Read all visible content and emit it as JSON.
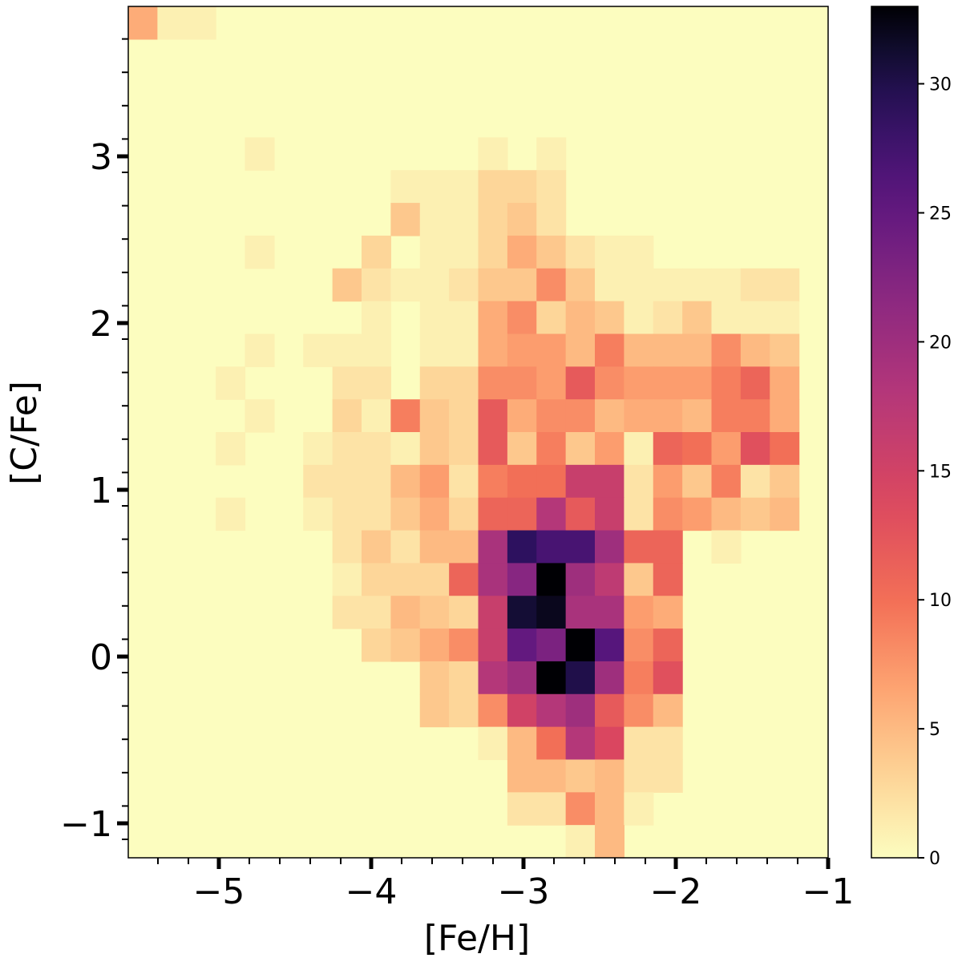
{
  "chart_data": {
    "type": "heatmap",
    "title": "",
    "xlabel": "[Fe/H]",
    "ylabel": "[C/Fe]",
    "colormap": "magma_r",
    "colors": {
      "low": "#fcfdbf",
      "high": "#000004"
    },
    "x_tick_labels": [
      "−5",
      "−4",
      "−3",
      "−2",
      "−1"
    ],
    "y_tick_labels": [
      "−1",
      "0",
      "1",
      "2",
      "3"
    ],
    "colorbar": {
      "tick_labels": [
        "0",
        "5",
        "10",
        "15",
        "20",
        "25",
        "30"
      ],
      "ticks": [
        0,
        5,
        10,
        15,
        20,
        25,
        30
      ],
      "range": [
        0,
        33
      ]
    },
    "xlim": [
      -5.65,
      -1.0
    ],
    "ylim": [
      -1.2,
      3.9
    ],
    "x_bin_edges_start": -5.65,
    "x_bin_width": 0.1818,
    "y_bin_edges_start": -1.2,
    "y_bin_width": 0.2048,
    "cells": [
      [
        0,
        24,
        6
      ],
      [
        1,
        24,
        1
      ],
      [
        2,
        24,
        1
      ],
      [
        4,
        20,
        1
      ],
      [
        12,
        20,
        1
      ],
      [
        14,
        20,
        1
      ],
      [
        9,
        19,
        1
      ],
      [
        10,
        19,
        1
      ],
      [
        11,
        19,
        1
      ],
      [
        12,
        19,
        3
      ],
      [
        13,
        19,
        3
      ],
      [
        14,
        19,
        2
      ],
      [
        9,
        18,
        4
      ],
      [
        10,
        18,
        1
      ],
      [
        11,
        18,
        1
      ],
      [
        12,
        18,
        3
      ],
      [
        13,
        18,
        4
      ],
      [
        14,
        18,
        2
      ],
      [
        4,
        17,
        1
      ],
      [
        8,
        17,
        3
      ],
      [
        10,
        17,
        1
      ],
      [
        11,
        17,
        1
      ],
      [
        12,
        17,
        3
      ],
      [
        13,
        17,
        6
      ],
      [
        14,
        17,
        4
      ],
      [
        15,
        17,
        2
      ],
      [
        16,
        17,
        1
      ],
      [
        17,
        17,
        1
      ],
      [
        7,
        16,
        4
      ],
      [
        8,
        16,
        2
      ],
      [
        9,
        16,
        1
      ],
      [
        10,
        16,
        1
      ],
      [
        11,
        16,
        2
      ],
      [
        12,
        16,
        4
      ],
      [
        13,
        16,
        4
      ],
      [
        14,
        16,
        8
      ],
      [
        15,
        16,
        4
      ],
      [
        16,
        16,
        1
      ],
      [
        17,
        16,
        1
      ],
      [
        18,
        16,
        1
      ],
      [
        19,
        16,
        1
      ],
      [
        20,
        16,
        1
      ],
      [
        21,
        16,
        2
      ],
      [
        22,
        16,
        2
      ],
      [
        8,
        15,
        1
      ],
      [
        10,
        15,
        1
      ],
      [
        11,
        15,
        1
      ],
      [
        12,
        15,
        6
      ],
      [
        13,
        15,
        8
      ],
      [
        14,
        15,
        3
      ],
      [
        15,
        15,
        5
      ],
      [
        16,
        15,
        4
      ],
      [
        17,
        15,
        1
      ],
      [
        18,
        15,
        2
      ],
      [
        19,
        15,
        4
      ],
      [
        20,
        15,
        1
      ],
      [
        21,
        15,
        1
      ],
      [
        22,
        15,
        1
      ],
      [
        4,
        14,
        1
      ],
      [
        6,
        14,
        1
      ],
      [
        7,
        14,
        1
      ],
      [
        8,
        14,
        1
      ],
      [
        10,
        14,
        1
      ],
      [
        11,
        14,
        1
      ],
      [
        12,
        14,
        6
      ],
      [
        13,
        14,
        7
      ],
      [
        14,
        14,
        7
      ],
      [
        15,
        14,
        5
      ],
      [
        16,
        14,
        9
      ],
      [
        17,
        14,
        5
      ],
      [
        18,
        14,
        5
      ],
      [
        19,
        14,
        5
      ],
      [
        20,
        14,
        8
      ],
      [
        21,
        14,
        5
      ],
      [
        22,
        14,
        4
      ],
      [
        3,
        13,
        1
      ],
      [
        7,
        13,
        2
      ],
      [
        8,
        13,
        2
      ],
      [
        10,
        13,
        3
      ],
      [
        11,
        13,
        3
      ],
      [
        12,
        13,
        8
      ],
      [
        13,
        13,
        8
      ],
      [
        14,
        13,
        7
      ],
      [
        15,
        13,
        12
      ],
      [
        16,
        13,
        8
      ],
      [
        17,
        13,
        7
      ],
      [
        18,
        13,
        7
      ],
      [
        19,
        13,
        7
      ],
      [
        20,
        13,
        9
      ],
      [
        21,
        13,
        11
      ],
      [
        22,
        13,
        6
      ],
      [
        4,
        12,
        1
      ],
      [
        7,
        12,
        3
      ],
      [
        8,
        12,
        1
      ],
      [
        9,
        12,
        9
      ],
      [
        10,
        12,
        4
      ],
      [
        11,
        12,
        3
      ],
      [
        12,
        12,
        12
      ],
      [
        13,
        12,
        6
      ],
      [
        14,
        12,
        8
      ],
      [
        15,
        12,
        8
      ],
      [
        16,
        12,
        5
      ],
      [
        17,
        12,
        6
      ],
      [
        18,
        12,
        6
      ],
      [
        19,
        12,
        5
      ],
      [
        20,
        12,
        9
      ],
      [
        21,
        12,
        9
      ],
      [
        22,
        12,
        6
      ],
      [
        3,
        11,
        1
      ],
      [
        6,
        11,
        1
      ],
      [
        7,
        11,
        2
      ],
      [
        8,
        11,
        2
      ],
      [
        9,
        11,
        1
      ],
      [
        10,
        11,
        4
      ],
      [
        11,
        11,
        3
      ],
      [
        12,
        11,
        12
      ],
      [
        13,
        11,
        4
      ],
      [
        14,
        11,
        9
      ],
      [
        15,
        11,
        4
      ],
      [
        16,
        11,
        7
      ],
      [
        17,
        11,
        1
      ],
      [
        18,
        11,
        11
      ],
      [
        19,
        11,
        10
      ],
      [
        20,
        11,
        7
      ],
      [
        21,
        11,
        13
      ],
      [
        22,
        11,
        10
      ],
      [
        6,
        10,
        2
      ],
      [
        7,
        10,
        2
      ],
      [
        8,
        10,
        2
      ],
      [
        9,
        10,
        5
      ],
      [
        10,
        10,
        7
      ],
      [
        11,
        10,
        2
      ],
      [
        12,
        10,
        9
      ],
      [
        13,
        10,
        10
      ],
      [
        14,
        10,
        10
      ],
      [
        15,
        10,
        16
      ],
      [
        16,
        10,
        16
      ],
      [
        17,
        10,
        2
      ],
      [
        18,
        10,
        7
      ],
      [
        19,
        10,
        4
      ],
      [
        20,
        10,
        9
      ],
      [
        21,
        10,
        2
      ],
      [
        22,
        10,
        4
      ],
      [
        3,
        9,
        1
      ],
      [
        6,
        9,
        1
      ],
      [
        7,
        9,
        2
      ],
      [
        8,
        9,
        2
      ],
      [
        9,
        9,
        4
      ],
      [
        10,
        9,
        6
      ],
      [
        11,
        9,
        3
      ],
      [
        12,
        9,
        11
      ],
      [
        13,
        9,
        11
      ],
      [
        14,
        9,
        18
      ],
      [
        15,
        9,
        12
      ],
      [
        16,
        9,
        16
      ],
      [
        17,
        9,
        2
      ],
      [
        18,
        9,
        8
      ],
      [
        19,
        9,
        7
      ],
      [
        20,
        9,
        5
      ],
      [
        21,
        9,
        4
      ],
      [
        22,
        9,
        5
      ],
      [
        7,
        8,
        2
      ],
      [
        8,
        8,
        4
      ],
      [
        9,
        8,
        2
      ],
      [
        10,
        8,
        5
      ],
      [
        11,
        8,
        5
      ],
      [
        12,
        8,
        19
      ],
      [
        13,
        8,
        29
      ],
      [
        14,
        8,
        27
      ],
      [
        15,
        8,
        27
      ],
      [
        16,
        8,
        20
      ],
      [
        17,
        8,
        11
      ],
      [
        18,
        8,
        11
      ],
      [
        20,
        8,
        1
      ],
      [
        7,
        7,
        1
      ],
      [
        8,
        7,
        3
      ],
      [
        9,
        7,
        3
      ],
      [
        10,
        7,
        3
      ],
      [
        11,
        7,
        11
      ],
      [
        12,
        7,
        19
      ],
      [
        13,
        7,
        22
      ],
      [
        14,
        7,
        33
      ],
      [
        15,
        7,
        20
      ],
      [
        16,
        7,
        17
      ],
      [
        17,
        7,
        4
      ],
      [
        18,
        7,
        11
      ],
      [
        7,
        6,
        2
      ],
      [
        8,
        6,
        2
      ],
      [
        9,
        6,
        5
      ],
      [
        10,
        6,
        4
      ],
      [
        11,
        6,
        3
      ],
      [
        12,
        6,
        16
      ],
      [
        13,
        6,
        31
      ],
      [
        14,
        6,
        32
      ],
      [
        15,
        6,
        19
      ],
      [
        16,
        6,
        19
      ],
      [
        17,
        6,
        7
      ],
      [
        18,
        6,
        6
      ],
      [
        8,
        5,
        3
      ],
      [
        9,
        5,
        4
      ],
      [
        10,
        5,
        6
      ],
      [
        11,
        5,
        8
      ],
      [
        12,
        5,
        16
      ],
      [
        13,
        5,
        25
      ],
      [
        14,
        5,
        23
      ],
      [
        15,
        5,
        33
      ],
      [
        16,
        5,
        26
      ],
      [
        17,
        5,
        8
      ],
      [
        18,
        5,
        11
      ],
      [
        10,
        4,
        4
      ],
      [
        11,
        4,
        3
      ],
      [
        12,
        4,
        18
      ],
      [
        13,
        4,
        20
      ],
      [
        14,
        4,
        33
      ],
      [
        15,
        4,
        30
      ],
      [
        16,
        4,
        20
      ],
      [
        17,
        4,
        9
      ],
      [
        18,
        4,
        13
      ],
      [
        10,
        3,
        4
      ],
      [
        11,
        3,
        3
      ],
      [
        12,
        3,
        8
      ],
      [
        13,
        3,
        15
      ],
      [
        14,
        3,
        18
      ],
      [
        15,
        3,
        20
      ],
      [
        16,
        3,
        12
      ],
      [
        17,
        3,
        8
      ],
      [
        18,
        3,
        5
      ],
      [
        12,
        2,
        1
      ],
      [
        13,
        2,
        5
      ],
      [
        14,
        2,
        10
      ],
      [
        15,
        2,
        18
      ],
      [
        16,
        2,
        14
      ],
      [
        17,
        2,
        2
      ],
      [
        18,
        2,
        2
      ],
      [
        13,
        1,
        5
      ],
      [
        14,
        1,
        5
      ],
      [
        15,
        1,
        4
      ],
      [
        16,
        1,
        5
      ],
      [
        17,
        1,
        2
      ],
      [
        18,
        1,
        2
      ],
      [
        13,
        0,
        2
      ],
      [
        14,
        0,
        2
      ],
      [
        15,
        0,
        8
      ],
      [
        16,
        0,
        5
      ],
      [
        17,
        0,
        1
      ],
      [
        15,
        -1,
        1
      ],
      [
        16,
        -1,
        5
      ]
    ]
  }
}
